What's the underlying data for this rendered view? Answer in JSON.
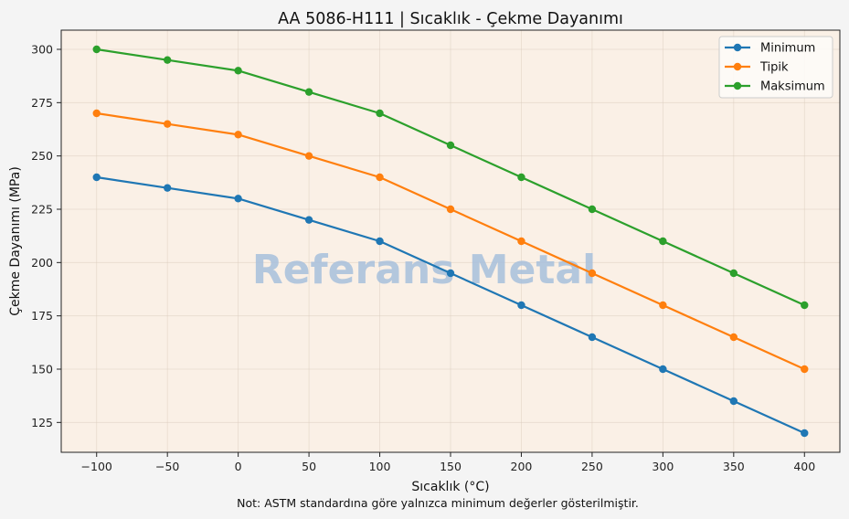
{
  "chart_data": {
    "type": "line",
    "title": "AA 5086-H111 | Sıcaklık - Çekme Dayanımı",
    "xlabel": "Sıcaklık (°C)",
    "ylabel": "Çekme Dayanımı (MPa)",
    "note": "Not: ASTM standardına göre yalnızca minimum değerler gösterilmiştir.",
    "watermark": "Referans Metal",
    "x": [
      -100,
      -50,
      0,
      50,
      100,
      150,
      200,
      250,
      300,
      350,
      400
    ],
    "xticks": [
      "−100",
      "−50",
      "0",
      "50",
      "100",
      "150",
      "200",
      "250",
      "300",
      "350",
      "400"
    ],
    "yticks": [
      125,
      150,
      175,
      200,
      225,
      250,
      275,
      300
    ],
    "xlim": [
      -125,
      425
    ],
    "ylim": [
      111,
      309
    ],
    "grid": true,
    "legend_position": "top-right",
    "background_color": "#faf0e6",
    "series": [
      {
        "name": "Minimum",
        "color": "#1f77b4",
        "values": [
          240,
          235,
          230,
          220,
          210,
          195,
          180,
          165,
          150,
          135,
          120
        ]
      },
      {
        "name": "Tipik",
        "color": "#ff7f0e",
        "values": [
          270,
          265,
          260,
          250,
          240,
          225,
          210,
          195,
          180,
          165,
          150
        ]
      },
      {
        "name": "Maksimum",
        "color": "#2ca02c",
        "values": [
          300,
          295,
          290,
          280,
          270,
          255,
          240,
          225,
          210,
          195,
          180
        ]
      }
    ]
  }
}
